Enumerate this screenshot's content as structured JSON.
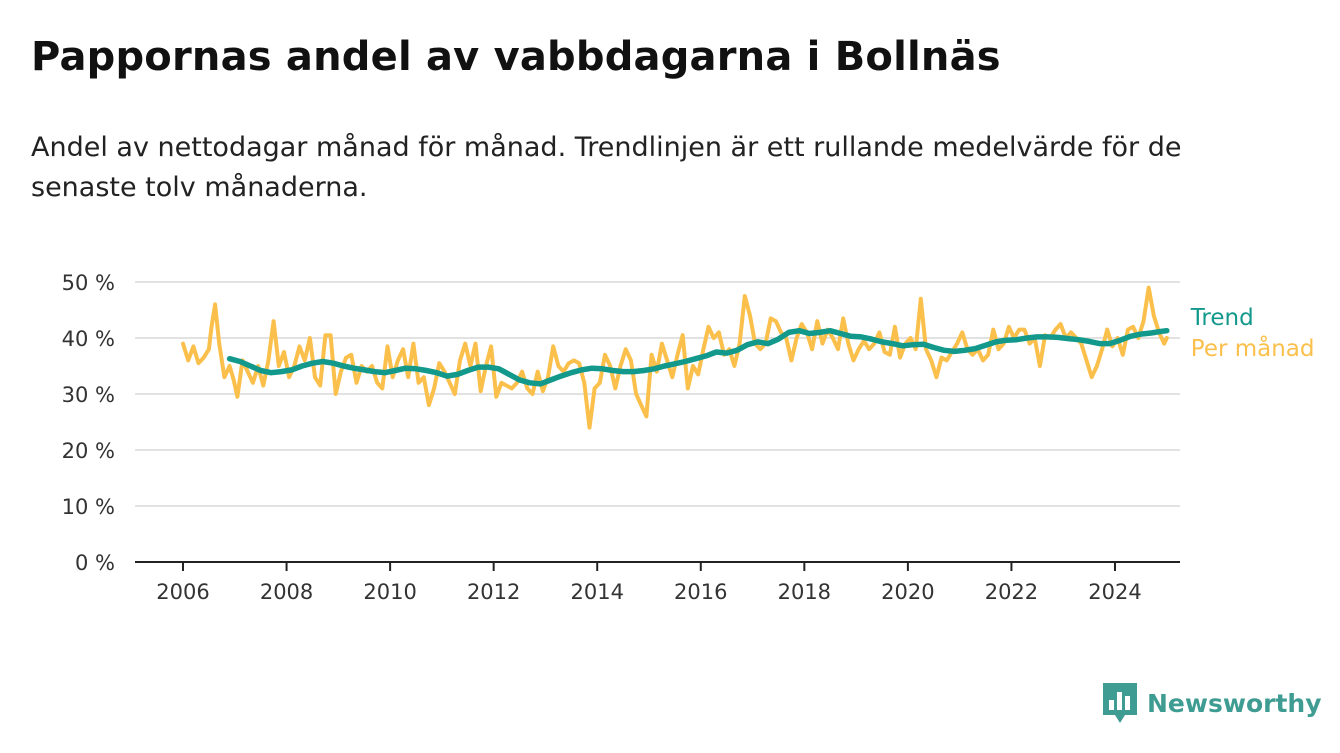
{
  "chart_data": {
    "type": "line",
    "title": "Pappornas andel av vabbdagarna i Bollnäs",
    "subtitle": "Andel av nettodagar månad för månad. Trendlinjen är ett rullande medelvärde för de senaste tolv månaderna.",
    "xlabel": "",
    "ylabel": "",
    "ylim": [
      0,
      50
    ],
    "xlim": [
      2005.6,
      2025.1
    ],
    "y_ticks": [
      0,
      10,
      20,
      30,
      40,
      50
    ],
    "y_tick_labels": [
      "0 %",
      "10 %",
      "20 %",
      "30 %",
      "40 %",
      "50 %"
    ],
    "x_ticks": [
      2006,
      2008,
      2010,
      2012,
      2014,
      2016,
      2018,
      2020,
      2022,
      2024
    ],
    "x_tick_labels": [
      "2006",
      "2008",
      "2010",
      "2012",
      "2014",
      "2016",
      "2018",
      "2020",
      "2022",
      "2024"
    ],
    "grid": true,
    "legend": "direct labels at right end of lines",
    "series": [
      {
        "name": "Per månad",
        "color": "#fbc04c",
        "points": [
          [
            2006.0,
            39
          ],
          [
            2006.1,
            36
          ],
          [
            2006.2,
            38.5
          ],
          [
            2006.3,
            35.5
          ],
          [
            2006.4,
            36.5
          ],
          [
            2006.5,
            38
          ],
          [
            2006.55,
            42
          ],
          [
            2006.62,
            46
          ],
          [
            2006.7,
            39
          ],
          [
            2006.8,
            33
          ],
          [
            2006.9,
            35
          ],
          [
            2006.98,
            32.5
          ],
          [
            2007.05,
            29.5
          ],
          [
            2007.15,
            36
          ],
          [
            2007.25,
            34
          ],
          [
            2007.35,
            32
          ],
          [
            2007.45,
            35
          ],
          [
            2007.55,
            31.5
          ],
          [
            2007.65,
            36
          ],
          [
            2007.75,
            43
          ],
          [
            2007.85,
            35
          ],
          [
            2007.95,
            37.5
          ],
          [
            2008.05,
            33
          ],
          [
            2008.15,
            35
          ],
          [
            2008.25,
            38.5
          ],
          [
            2008.35,
            36
          ],
          [
            2008.45,
            40
          ],
          [
            2008.55,
            33
          ],
          [
            2008.65,
            31.5
          ],
          [
            2008.75,
            40.5
          ],
          [
            2008.85,
            40.5
          ],
          [
            2008.95,
            30
          ],
          [
            2009.05,
            34
          ],
          [
            2009.15,
            36.5
          ],
          [
            2009.25,
            37
          ],
          [
            2009.35,
            32
          ],
          [
            2009.45,
            35
          ],
          [
            2009.55,
            34
          ],
          [
            2009.65,
            35
          ],
          [
            2009.75,
            32
          ],
          [
            2009.85,
            31
          ],
          [
            2009.95,
            38.5
          ],
          [
            2010.05,
            33
          ],
          [
            2010.15,
            36
          ],
          [
            2010.25,
            38
          ],
          [
            2010.35,
            33
          ],
          [
            2010.45,
            39
          ],
          [
            2010.55,
            32
          ],
          [
            2010.65,
            33
          ],
          [
            2010.75,
            28
          ],
          [
            2010.85,
            31
          ],
          [
            2010.95,
            35.5
          ],
          [
            2011.05,
            34
          ],
          [
            2011.15,
            32
          ],
          [
            2011.25,
            30
          ],
          [
            2011.35,
            36
          ],
          [
            2011.45,
            39
          ],
          [
            2011.55,
            35
          ],
          [
            2011.65,
            39
          ],
          [
            2011.75,
            30.5
          ],
          [
            2011.85,
            35
          ],
          [
            2011.95,
            38.5
          ],
          [
            2012.05,
            29.5
          ],
          [
            2012.15,
            32
          ],
          [
            2012.25,
            31.5
          ],
          [
            2012.35,
            31
          ],
          [
            2012.45,
            32
          ],
          [
            2012.55,
            34
          ],
          [
            2012.65,
            31
          ],
          [
            2012.75,
            30
          ],
          [
            2012.85,
            34
          ],
          [
            2012.95,
            30.5
          ],
          [
            2013.05,
            33
          ],
          [
            2013.15,
            38.5
          ],
          [
            2013.25,
            35
          ],
          [
            2013.35,
            34
          ],
          [
            2013.45,
            35.5
          ],
          [
            2013.55,
            36
          ],
          [
            2013.65,
            35.5
          ],
          [
            2013.75,
            32
          ],
          [
            2013.85,
            24
          ],
          [
            2013.95,
            31
          ],
          [
            2014.05,
            32
          ],
          [
            2014.15,
            37
          ],
          [
            2014.25,
            35
          ],
          [
            2014.35,
            31
          ],
          [
            2014.45,
            35
          ],
          [
            2014.55,
            38
          ],
          [
            2014.65,
            36
          ],
          [
            2014.75,
            30
          ],
          [
            2014.85,
            28
          ],
          [
            2014.95,
            26
          ],
          [
            2015.05,
            37
          ],
          [
            2015.15,
            34
          ],
          [
            2015.25,
            39
          ],
          [
            2015.35,
            36
          ],
          [
            2015.45,
            33
          ],
          [
            2015.55,
            37
          ],
          [
            2015.65,
            40.5
          ],
          [
            2015.75,
            31
          ],
          [
            2015.85,
            35
          ],
          [
            2015.95,
            33.5
          ],
          [
            2016.05,
            38
          ],
          [
            2016.15,
            42
          ],
          [
            2016.25,
            40
          ],
          [
            2016.35,
            41
          ],
          [
            2016.45,
            37
          ],
          [
            2016.55,
            38
          ],
          [
            2016.65,
            35
          ],
          [
            2016.75,
            39
          ],
          [
            2016.85,
            47.5
          ],
          [
            2016.95,
            44
          ],
          [
            2017.05,
            39
          ],
          [
            2017.15,
            38
          ],
          [
            2017.25,
            39
          ],
          [
            2017.35,
            43.5
          ],
          [
            2017.45,
            43
          ],
          [
            2017.55,
            41
          ],
          [
            2017.65,
            40
          ],
          [
            2017.75,
            36
          ],
          [
            2017.85,
            40
          ],
          [
            2017.95,
            42.5
          ],
          [
            2018.05,
            41
          ],
          [
            2018.15,
            38
          ],
          [
            2018.25,
            43
          ],
          [
            2018.35,
            39
          ],
          [
            2018.45,
            41.5
          ],
          [
            2018.55,
            40
          ],
          [
            2018.65,
            38
          ],
          [
            2018.75,
            43.5
          ],
          [
            2018.85,
            39
          ],
          [
            2018.95,
            36
          ],
          [
            2019.05,
            38
          ],
          [
            2019.15,
            39.5
          ],
          [
            2019.25,
            38
          ],
          [
            2019.35,
            39
          ],
          [
            2019.45,
            41
          ],
          [
            2019.55,
            37.5
          ],
          [
            2019.65,
            37
          ],
          [
            2019.75,
            42
          ],
          [
            2019.85,
            36.5
          ],
          [
            2019.95,
            39
          ],
          [
            2020.05,
            40
          ],
          [
            2020.15,
            38
          ],
          [
            2020.25,
            47
          ],
          [
            2020.35,
            38
          ],
          [
            2020.45,
            36
          ],
          [
            2020.55,
            33
          ],
          [
            2020.65,
            36.5
          ],
          [
            2020.75,
            36
          ],
          [
            2020.85,
            37.5
          ],
          [
            2020.95,
            39
          ],
          [
            2021.05,
            41
          ],
          [
            2021.15,
            38
          ],
          [
            2021.25,
            37
          ],
          [
            2021.35,
            38
          ],
          [
            2021.45,
            36
          ],
          [
            2021.55,
            37
          ],
          [
            2021.65,
            41.5
          ],
          [
            2021.75,
            38
          ],
          [
            2021.85,
            39
          ],
          [
            2021.95,
            42
          ],
          [
            2022.05,
            40
          ],
          [
            2022.15,
            41.5
          ],
          [
            2022.25,
            41.5
          ],
          [
            2022.35,
            39
          ],
          [
            2022.45,
            40
          ],
          [
            2022.55,
            35
          ],
          [
            2022.65,
            40.5
          ],
          [
            2022.75,
            40
          ],
          [
            2022.85,
            41.5
          ],
          [
            2022.95,
            42.5
          ],
          [
            2023.05,
            40
          ],
          [
            2023.15,
            41
          ],
          [
            2023.25,
            40
          ],
          [
            2023.35,
            39
          ],
          [
            2023.45,
            36
          ],
          [
            2023.55,
            33
          ],
          [
            2023.65,
            35
          ],
          [
            2023.75,
            38
          ],
          [
            2023.85,
            41.5
          ],
          [
            2023.95,
            38.5
          ],
          [
            2024.05,
            40
          ],
          [
            2024.15,
            37
          ],
          [
            2024.25,
            41.5
          ],
          [
            2024.35,
            42
          ],
          [
            2024.45,
            40
          ],
          [
            2024.55,
            43
          ],
          [
            2024.65,
            49
          ],
          [
            2024.75,
            44
          ],
          [
            2024.85,
            41
          ],
          [
            2024.95,
            39
          ],
          [
            2025.0,
            40
          ]
        ]
      },
      {
        "name": "Trend",
        "color": "#13998c",
        "points": [
          [
            2006.9,
            36.3
          ],
          [
            2007.1,
            35.8
          ],
          [
            2007.3,
            35
          ],
          [
            2007.5,
            34.2
          ],
          [
            2007.7,
            33.8
          ],
          [
            2007.9,
            34.0
          ],
          [
            2008.1,
            34.3
          ],
          [
            2008.3,
            35.0
          ],
          [
            2008.5,
            35.5
          ],
          [
            2008.7,
            35.8
          ],
          [
            2008.9,
            35.5
          ],
          [
            2009.1,
            35.0
          ],
          [
            2009.3,
            34.6
          ],
          [
            2009.5,
            34.3
          ],
          [
            2009.7,
            34.0
          ],
          [
            2009.9,
            33.8
          ],
          [
            2010.1,
            34.2
          ],
          [
            2010.3,
            34.6
          ],
          [
            2010.5,
            34.5
          ],
          [
            2010.7,
            34.2
          ],
          [
            2010.9,
            33.8
          ],
          [
            2011.1,
            33.2
          ],
          [
            2011.3,
            33.5
          ],
          [
            2011.5,
            34.2
          ],
          [
            2011.7,
            34.8
          ],
          [
            2011.9,
            34.8
          ],
          [
            2012.1,
            34.5
          ],
          [
            2012.3,
            33.5
          ],
          [
            2012.5,
            32.5
          ],
          [
            2012.7,
            32.0
          ],
          [
            2012.9,
            31.8
          ],
          [
            2013.1,
            32.5
          ],
          [
            2013.3,
            33.2
          ],
          [
            2013.5,
            33.8
          ],
          [
            2013.7,
            34.3
          ],
          [
            2013.9,
            34.6
          ],
          [
            2014.1,
            34.5
          ],
          [
            2014.3,
            34.2
          ],
          [
            2014.5,
            34.0
          ],
          [
            2014.7,
            34.0
          ],
          [
            2014.9,
            34.2
          ],
          [
            2015.1,
            34.5
          ],
          [
            2015.3,
            35.0
          ],
          [
            2015.5,
            35.4
          ],
          [
            2015.7,
            35.8
          ],
          [
            2015.9,
            36.3
          ],
          [
            2016.1,
            36.8
          ],
          [
            2016.3,
            37.5
          ],
          [
            2016.5,
            37.3
          ],
          [
            2016.7,
            37.8
          ],
          [
            2016.9,
            38.8
          ],
          [
            2017.1,
            39.3
          ],
          [
            2017.3,
            39.0
          ],
          [
            2017.5,
            39.8
          ],
          [
            2017.7,
            41.0
          ],
          [
            2017.9,
            41.3
          ],
          [
            2018.1,
            40.8
          ],
          [
            2018.3,
            41.0
          ],
          [
            2018.5,
            41.3
          ],
          [
            2018.7,
            40.8
          ],
          [
            2018.9,
            40.3
          ],
          [
            2019.1,
            40.2
          ],
          [
            2019.3,
            39.8
          ],
          [
            2019.5,
            39.3
          ],
          [
            2019.7,
            39.0
          ],
          [
            2019.9,
            38.6
          ],
          [
            2020.1,
            38.8
          ],
          [
            2020.3,
            38.9
          ],
          [
            2020.5,
            38.3
          ],
          [
            2020.7,
            37.8
          ],
          [
            2020.9,
            37.6
          ],
          [
            2021.1,
            37.8
          ],
          [
            2021.3,
            38.1
          ],
          [
            2021.5,
            38.7
          ],
          [
            2021.7,
            39.3
          ],
          [
            2021.9,
            39.6
          ],
          [
            2022.1,
            39.7
          ],
          [
            2022.3,
            40.0
          ],
          [
            2022.5,
            40.2
          ],
          [
            2022.7,
            40.2
          ],
          [
            2022.9,
            40.1
          ],
          [
            2023.1,
            39.9
          ],
          [
            2023.3,
            39.7
          ],
          [
            2023.5,
            39.4
          ],
          [
            2023.7,
            39.0
          ],
          [
            2023.9,
            39.0
          ],
          [
            2024.1,
            39.6
          ],
          [
            2024.3,
            40.3
          ],
          [
            2024.5,
            40.7
          ],
          [
            2024.7,
            40.9
          ],
          [
            2024.9,
            41.2
          ],
          [
            2025.0,
            41.3
          ]
        ]
      }
    ]
  },
  "brand": {
    "name": "Newsworthy",
    "icon": "bar-chart-speech-bubble-icon",
    "color": "#3f9c92"
  }
}
